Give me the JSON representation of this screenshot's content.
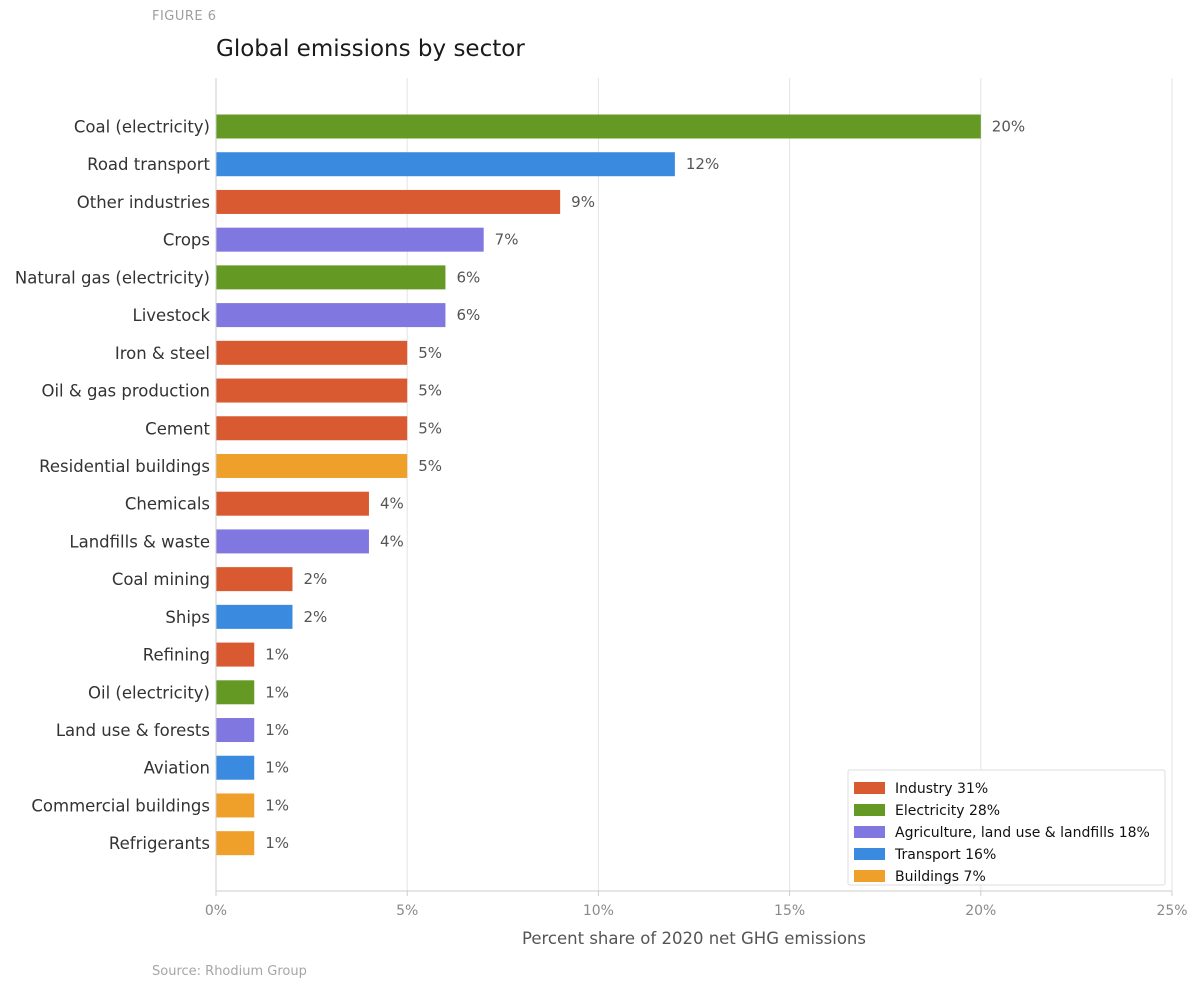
{
  "figure_label": "FIGURE 6",
  "source": "Source: Rhodium Group",
  "colors": {
    "Industry": "#d95a30",
    "Electricity": "#649a23",
    "Agriculture": "#8177e0",
    "Transport": "#3a8bdf",
    "Buildings": "#efa02a"
  },
  "chart_data": {
    "type": "bar",
    "orientation": "horizontal",
    "title": "Global emissions by sector",
    "xlabel": "Percent share of 2020 net GHG emissions",
    "ylabel": "",
    "xlim": [
      0,
      25
    ],
    "x_ticks": [
      0,
      5,
      10,
      15,
      20,
      25
    ],
    "x_tick_labels": [
      "0%",
      "5%",
      "10%",
      "15%",
      "20%",
      "25%"
    ],
    "grid": "vertical",
    "legend_position": "bottom-right",
    "categories": [
      "Coal (electricity)",
      "Road transport",
      "Other industries",
      "Crops",
      "Natural gas (electricity)",
      "Livestock",
      "Iron & steel",
      "Oil & gas production",
      "Cement",
      "Residential buildings",
      "Chemicals",
      "Landfills & waste",
      "Coal mining",
      "Ships",
      "Refining",
      "Oil (electricity)",
      "Land use & forests",
      "Aviation",
      "Commercial buildings",
      "Refrigerants"
    ],
    "values": [
      20,
      12,
      9,
      7,
      6,
      6,
      5,
      5,
      5,
      5,
      4,
      4,
      2,
      2,
      1,
      1,
      1,
      1,
      1,
      1
    ],
    "value_labels": [
      "20%",
      "12%",
      "9%",
      "7%",
      "6%",
      "6%",
      "5%",
      "5%",
      "5%",
      "5%",
      "4%",
      "4%",
      "2%",
      "2%",
      "1%",
      "1%",
      "1%",
      "1%",
      "1%",
      "1%"
    ],
    "groups": [
      "Electricity",
      "Transport",
      "Industry",
      "Agriculture",
      "Electricity",
      "Agriculture",
      "Industry",
      "Industry",
      "Industry",
      "Buildings",
      "Industry",
      "Agriculture",
      "Industry",
      "Transport",
      "Industry",
      "Electricity",
      "Agriculture",
      "Transport",
      "Buildings",
      "Buildings"
    ],
    "legend": [
      {
        "group": "Industry",
        "label": "Industry 31%"
      },
      {
        "group": "Electricity",
        "label": "Electricity 28%"
      },
      {
        "group": "Agriculture",
        "label": "Agriculture, land use & landfills 18%"
      },
      {
        "group": "Transport",
        "label": "Transport 16%"
      },
      {
        "group": "Buildings",
        "label": "Buildings 7%"
      }
    ]
  }
}
